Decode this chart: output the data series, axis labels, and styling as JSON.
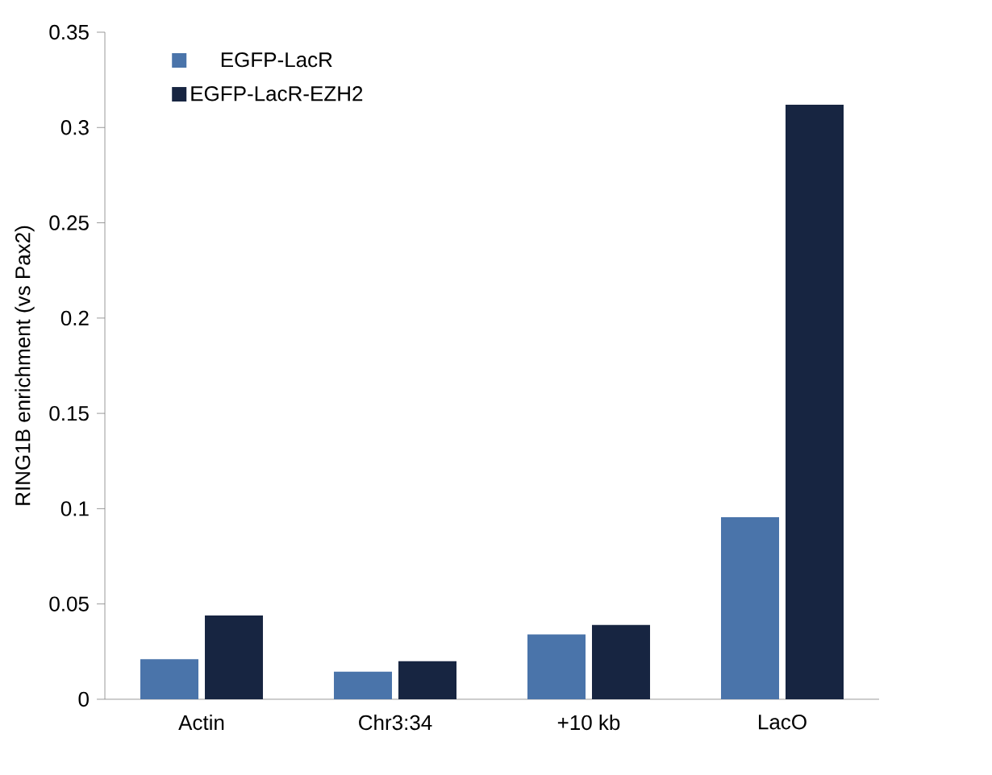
{
  "chart_data": {
    "type": "bar",
    "ylabel": "RING1B enrichment (vs Pax2)",
    "categories": [
      "Actin",
      "Chr3:34",
      "+10 kb",
      "LacO"
    ],
    "series": [
      {
        "name": "EGFP-LacR",
        "color": "#4a74aa",
        "values": [
          0.021,
          0.0145,
          0.034,
          0.0955
        ]
      },
      {
        "name": "EGFP-LacR-EZH2",
        "color": "#172541",
        "values": [
          0.044,
          0.02,
          0.039,
          0.312
        ]
      }
    ],
    "ylim": [
      0,
      0.35
    ],
    "yticks": [
      0,
      0.05,
      0.1,
      0.15,
      0.2,
      0.25,
      0.3,
      0.35
    ],
    "grid": false,
    "legend": "top left"
  }
}
